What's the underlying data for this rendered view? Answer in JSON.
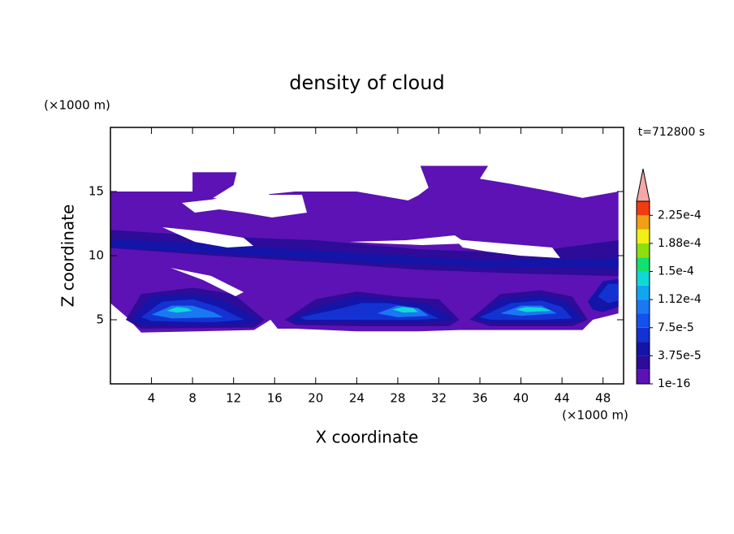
{
  "chart_data": {
    "type": "contour",
    "title": "density of cloud",
    "xlabel": "X coordinate",
    "ylabel": "Z coordinate",
    "x_unit": "(×1000 m)",
    "y_unit": "(×1000 m)",
    "time_label": "t=712800 s",
    "xlim": [
      0,
      50
    ],
    "ylim": [
      0,
      20
    ],
    "xticks": [
      4,
      8,
      12,
      16,
      20,
      24,
      28,
      32,
      36,
      40,
      44,
      48
    ],
    "yticks": [
      5,
      10,
      15
    ],
    "colorbar": {
      "clim": [
        1e-16,
        0.00024375
      ],
      "levels": [
        1e-16,
        1.875e-05,
        3.75e-05,
        5.625e-05,
        7.5e-05,
        9.375e-05,
        0.0001125,
        0.00013125,
        0.00015,
        0.00016875,
        0.0001875,
        0.00020625,
        0.000225
      ],
      "colors": [
        "#5c12b4",
        "#2c0c98",
        "#1414a8",
        "#1432d2",
        "#1452ee",
        "#1a78f2",
        "#12a6f2",
        "#10d8d6",
        "#14e070",
        "#8ce010",
        "#f0f014",
        "#f0a014",
        "#f03c10"
      ],
      "extend_color": "#f4a8a8",
      "ticks": [
        {
          "value": 1e-16,
          "label": "1e-16"
        },
        {
          "value": 3.75e-05,
          "label": "3.75e-5"
        },
        {
          "value": 7.5e-05,
          "label": "7.5e-5"
        },
        {
          "value": 0.0001125,
          "label": "1.12e-4"
        },
        {
          "value": 0.00015,
          "label": "1.5e-4"
        },
        {
          "value": 0.0001875,
          "label": "1.88e-4"
        },
        {
          "value": 0.000225,
          "label": "2.25e-4"
        }
      ]
    },
    "regions": [
      {
        "level": 0,
        "x": [
          0,
          8,
          8,
          12.3,
          12,
          10,
          14,
          15.5,
          18,
          24,
          29,
          30,
          31,
          30.2,
          36.8,
          36,
          39,
          43,
          46,
          49.5,
          49.5,
          47,
          46,
          40,
          34,
          30,
          24,
          18,
          16.3,
          15.6,
          14,
          3,
          1.6,
          0
        ],
        "z": [
          15,
          15,
          16.5,
          16.5,
          15.5,
          14.5,
          14,
          14.8,
          15,
          15,
          14.3,
          14.7,
          15.3,
          17,
          17,
          16,
          15.6,
          15,
          14.5,
          15,
          5.5,
          5,
          4.2,
          4.2,
          4.2,
          4.1,
          4.1,
          4.3,
          4.3,
          5,
          4.2,
          4,
          5.2,
          6.3
        ]
      },
      {
        "level": 1,
        "x": [
          0,
          10,
          20,
          30,
          40,
          49.5,
          49.5,
          40,
          30,
          20,
          10,
          0
        ],
        "z": [
          12,
          11.5,
          11.2,
          10.5,
          10.2,
          11.2,
          8.4,
          8.6,
          8.9,
          9.5,
          10,
          10.6
        ]
      },
      {
        "level": 2,
        "x": [
          0,
          12,
          24,
          36,
          49.5,
          49.5,
          36,
          24,
          12,
          0
        ],
        "z": [
          11.3,
          10.8,
          10.2,
          9.6,
          9.8,
          9,
          9.1,
          9.5,
          10.1,
          10.6
        ]
      },
      {
        "level": 1,
        "x": [
          1.5,
          3,
          8,
          12,
          15,
          14,
          3
        ],
        "z": [
          5,
          7,
          7.5,
          7,
          5,
          4.4,
          4.3
        ]
      },
      {
        "level": 2,
        "x": [
          2,
          4,
          8,
          11,
          14.5,
          13,
          3
        ],
        "z": [
          5,
          6.8,
          7,
          6.5,
          5,
          4.6,
          4.6
        ]
      },
      {
        "level": 3,
        "x": [
          3,
          5,
          8,
          10.5,
          13,
          10,
          4
        ],
        "z": [
          5.2,
          6.4,
          6.6,
          6,
          5,
          4.8,
          4.9
        ]
      },
      {
        "level": 5,
        "x": [
          4,
          6,
          8,
          10,
          11,
          6
        ],
        "z": [
          5.4,
          6.1,
          6.1,
          5.6,
          5.2,
          5.1
        ]
      },
      {
        "level": 7,
        "x": [
          5.5,
          6.5,
          7.5,
          8,
          6.5
        ],
        "z": [
          5.7,
          6,
          5.9,
          5.7,
          5.55
        ]
      },
      {
        "level": 1,
        "x": [
          17,
          20,
          24,
          28,
          32,
          34,
          33,
          24,
          18
        ],
        "z": [
          5,
          6.6,
          7.2,
          6.8,
          6.6,
          5,
          4.5,
          4.5,
          4.6
        ]
      },
      {
        "level": 2,
        "x": [
          17.5,
          21,
          24,
          28,
          31,
          33.5,
          30,
          24,
          18
        ],
        "z": [
          5.1,
          6.2,
          6.8,
          6.5,
          6.2,
          5,
          4.8,
          4.8,
          4.8
        ]
      },
      {
        "level": 3,
        "x": [
          18.5,
          22,
          24.5,
          27,
          30,
          32,
          30,
          24,
          19
        ],
        "z": [
          5.2,
          5.8,
          6.3,
          6.3,
          5.9,
          5.1,
          5,
          5,
          5
        ]
      },
      {
        "level": 5,
        "x": [
          26,
          28,
          30,
          31,
          28
        ],
        "z": [
          5.5,
          6.1,
          5.9,
          5.3,
          5.2
        ]
      },
      {
        "level": 7,
        "x": [
          27.5,
          28.5,
          29.5,
          30,
          28.5
        ],
        "z": [
          5.8,
          6,
          5.9,
          5.6,
          5.55
        ]
      },
      {
        "level": 1,
        "x": [
          35,
          38,
          42,
          45,
          46.5,
          45,
          37
        ],
        "z": [
          5,
          7,
          7.3,
          6.8,
          5,
          4.5,
          4.5
        ]
      },
      {
        "level": 2,
        "x": [
          35.5,
          38,
          42,
          44.5,
          46,
          44,
          37
        ],
        "z": [
          5.1,
          6.6,
          6.9,
          6.4,
          5,
          4.8,
          4.8
        ]
      },
      {
        "level": 3,
        "x": [
          36,
          39,
          42,
          44,
          45,
          42,
          37
        ],
        "z": [
          5.2,
          6.3,
          6.5,
          6,
          5.1,
          5,
          5
        ]
      },
      {
        "level": 5,
        "x": [
          38,
          40,
          42,
          43.5,
          40
        ],
        "z": [
          5.5,
          6.1,
          6.1,
          5.5,
          5.3
        ]
      },
      {
        "level": 7,
        "x": [
          39.5,
          40.5,
          42,
          43,
          40.5
        ],
        "z": [
          5.8,
          6,
          5.95,
          5.7,
          5.6
        ]
      },
      {
        "level": 2,
        "x": [
          46.5,
          48,
          49.5,
          49.5,
          48,
          47
        ],
        "z": [
          6.4,
          8,
          8.2,
          6,
          5.6,
          5.8
        ]
      },
      {
        "level": 3,
        "x": [
          47.5,
          48.5,
          49.5,
          49.5,
          48.5
        ],
        "z": [
          6.8,
          7.8,
          7.8,
          6.5,
          6.3
        ]
      }
    ]
  }
}
